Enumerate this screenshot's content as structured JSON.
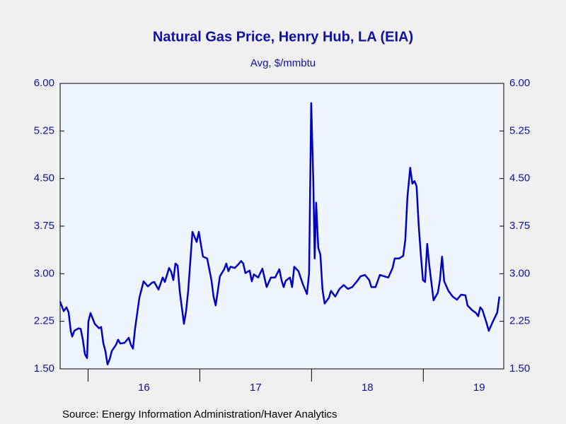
{
  "chart_data": {
    "type": "line",
    "title": "Natural Gas Price, Henry Hub, LA (EIA)",
    "subtitle": "Avg, $/mmbtu",
    "source": "Source:  Energy Information Administration/Haver Analytics",
    "series": [
      {
        "color": "#0000c0",
        "x": [
          15.75,
          15.782,
          15.807,
          15.826,
          15.845,
          15.858,
          15.877,
          15.915,
          15.934,
          15.953,
          15.972,
          15.991,
          16.003,
          16.022,
          16.06,
          16.098,
          16.117,
          16.136,
          16.155,
          16.174,
          16.193,
          16.212,
          16.25,
          16.269,
          16.288,
          16.326,
          16.364,
          16.383,
          16.402,
          16.421,
          16.459,
          16.497,
          16.535,
          16.573,
          16.592,
          16.63,
          16.668,
          16.687,
          16.725,
          16.744,
          16.763,
          16.782,
          16.801,
          16.82,
          16.858,
          16.877,
          16.896,
          16.934,
          16.972,
          16.991,
          17.028,
          17.066,
          17.104,
          17.123,
          17.142,
          17.18,
          17.218,
          17.237,
          17.256,
          17.275,
          17.313,
          17.351,
          17.37,
          17.389,
          17.408,
          17.446,
          17.465,
          17.484,
          17.522,
          17.56,
          17.598,
          17.636,
          17.674,
          17.712,
          17.731,
          17.75,
          17.769,
          17.807,
          17.826,
          17.845,
          17.883,
          17.921,
          17.959,
          17.978,
          17.997,
          18.016,
          18.028,
          18.041,
          18.06,
          18.079,
          18.098,
          18.117,
          18.155,
          18.174,
          18.212,
          18.25,
          18.288,
          18.326,
          18.364,
          18.402,
          18.44,
          18.478,
          18.516,
          18.535,
          18.573,
          18.611,
          18.649,
          18.687,
          18.725,
          18.744,
          18.782,
          18.82,
          18.839,
          18.858,
          18.883,
          18.902,
          18.921,
          18.94,
          18.959,
          18.978,
          18.997,
          19.016,
          19.035,
          19.054,
          19.092,
          19.13,
          19.149,
          19.168,
          19.187,
          19.225,
          19.263,
          19.301,
          19.339,
          19.377,
          19.396,
          19.434,
          19.472,
          19.491,
          19.51,
          19.529,
          19.567,
          19.586,
          19.624,
          19.662,
          19.681
        ],
        "values": [
          2.56,
          2.41,
          2.47,
          2.39,
          2.1,
          2.01,
          2.1,
          2.14,
          2.13,
          1.96,
          1.73,
          1.67,
          2.25,
          2.38,
          2.21,
          2.14,
          2.16,
          1.91,
          1.78,
          1.57,
          1.65,
          1.78,
          1.88,
          1.96,
          1.9,
          1.91,
          1.99,
          1.88,
          1.82,
          2.14,
          2.62,
          2.88,
          2.8,
          2.86,
          2.87,
          2.75,
          2.94,
          2.87,
          3.09,
          3.03,
          2.9,
          3.16,
          3.13,
          2.73,
          2.21,
          2.41,
          2.73,
          3.66,
          3.5,
          3.66,
          3.27,
          3.24,
          2.9,
          2.64,
          2.5,
          2.96,
          3.07,
          3.16,
          3.04,
          3.11,
          3.09,
          3.16,
          3.2,
          3.16,
          3.01,
          3.05,
          2.88,
          2.99,
          2.94,
          3.08,
          2.79,
          2.94,
          2.94,
          3.07,
          2.9,
          2.79,
          2.89,
          2.94,
          2.79,
          3.11,
          3.04,
          2.84,
          2.68,
          3.01,
          5.69,
          4.44,
          3.24,
          4.12,
          3.41,
          3.3,
          2.75,
          2.53,
          2.62,
          2.73,
          2.64,
          2.76,
          2.82,
          2.76,
          2.79,
          2.87,
          2.96,
          2.98,
          2.9,
          2.79,
          2.79,
          2.98,
          2.96,
          2.94,
          3.09,
          3.24,
          3.24,
          3.28,
          3.53,
          4.21,
          4.67,
          4.42,
          4.46,
          4.38,
          3.76,
          3.3,
          2.9,
          2.87,
          3.47,
          3.13,
          2.58,
          2.7,
          2.9,
          3.27,
          2.88,
          2.73,
          2.64,
          2.59,
          2.67,
          2.66,
          2.5,
          2.43,
          2.38,
          2.33,
          2.47,
          2.43,
          2.22,
          2.1,
          2.25,
          2.39,
          2.64
        ]
      }
    ],
    "xlim": [
      15.75,
      19.72
    ],
    "xticks": [
      {
        "value": 16.5,
        "label": "16"
      },
      {
        "value": 17.5,
        "label": "17"
      },
      {
        "value": 18.5,
        "label": "18"
      },
      {
        "value": 19.5,
        "label": "19"
      }
    ],
    "xminor_ticks": [
      16,
      17,
      18,
      19
    ],
    "ylim": [
      1.5,
      6.0
    ],
    "yticks": [
      {
        "value": 1.5,
        "label": "1.50"
      },
      {
        "value": 2.25,
        "label": "2.25"
      },
      {
        "value": 3.0,
        "label": "3.00"
      },
      {
        "value": 3.75,
        "label": "3.75"
      },
      {
        "value": 4.5,
        "label": "4.50"
      },
      {
        "value": 5.25,
        "label": "5.25"
      },
      {
        "value": 6.0,
        "label": "6.00"
      }
    ],
    "mirror_y_axis": true,
    "grid": false
  }
}
